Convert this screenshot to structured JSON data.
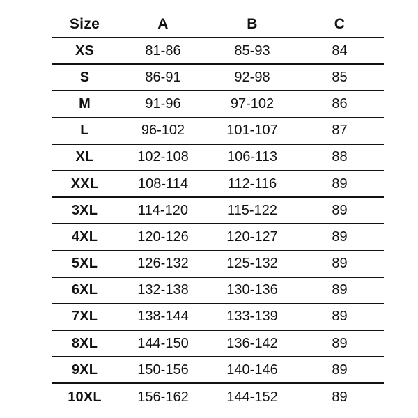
{
  "colors": {
    "background": "#ffffff",
    "text": "#121212",
    "rule_line": "#121212"
  },
  "chart_data": {
    "type": "table",
    "columns": [
      "Size",
      "A",
      "B",
      "C"
    ],
    "rows": [
      [
        "XS",
        "81-86",
        "85-93",
        "84"
      ],
      [
        "S",
        "86-91",
        "92-98",
        "85"
      ],
      [
        "M",
        "91-96",
        "97-102",
        "86"
      ],
      [
        "L",
        "96-102",
        "101-107",
        "87"
      ],
      [
        "XL",
        "102-108",
        "106-113",
        "88"
      ],
      [
        "XXL",
        "108-114",
        "112-116",
        "89"
      ],
      [
        "3XL",
        "114-120",
        "115-122",
        "89"
      ],
      [
        "4XL",
        "120-126",
        "120-127",
        "89"
      ],
      [
        "5XL",
        "126-132",
        "125-132",
        "89"
      ],
      [
        "6XL",
        "132-138",
        "130-136",
        "89"
      ],
      [
        "7XL",
        "138-144",
        "133-139",
        "89"
      ],
      [
        "8XL",
        "144-150",
        "136-142",
        "89"
      ],
      [
        "9XL",
        "150-156",
        "140-146",
        "89"
      ],
      [
        "10XL",
        "156-162",
        "144-152",
        "89"
      ]
    ]
  }
}
